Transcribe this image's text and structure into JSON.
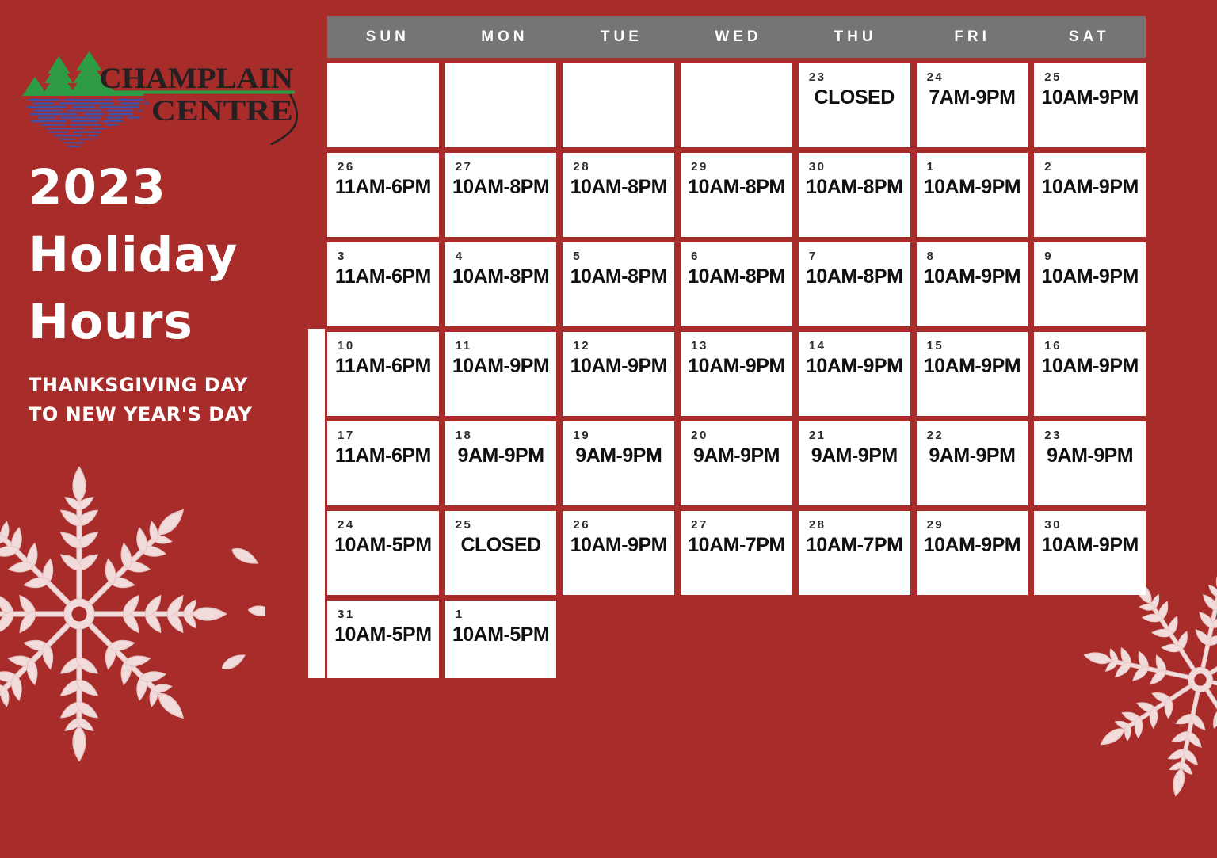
{
  "page_title": "2023 Holiday Hours",
  "brand": {
    "name_line1": "CHAMPLAIN",
    "name_line2": "CENTRE"
  },
  "title": {
    "line1": "2023",
    "line2": "Holiday",
    "line3": "Hours"
  },
  "subtitle": {
    "line1": "THANKSGIVING DAY",
    "line2": "TO NEW YEAR'S DAY"
  },
  "calendar": {
    "day_headers": [
      "SUN",
      "MON",
      "TUE",
      "WED",
      "THU",
      "FRI",
      "SAT"
    ],
    "weeks": [
      [
        {
          "date": "",
          "hours": ""
        },
        {
          "date": "",
          "hours": ""
        },
        {
          "date": "",
          "hours": ""
        },
        {
          "date": "",
          "hours": ""
        },
        {
          "date": "23",
          "hours": "CLOSED"
        },
        {
          "date": "24",
          "hours": "7AM-9PM"
        },
        {
          "date": "25",
          "hours": "10AM-9PM"
        }
      ],
      [
        {
          "date": "26",
          "hours": "11AM-6PM"
        },
        {
          "date": "27",
          "hours": "10AM-8PM"
        },
        {
          "date": "28",
          "hours": "10AM-8PM"
        },
        {
          "date": "29",
          "hours": "10AM-8PM"
        },
        {
          "date": "30",
          "hours": "10AM-8PM"
        },
        {
          "date": "1",
          "hours": "10AM-9PM"
        },
        {
          "date": "2",
          "hours": "10AM-9PM"
        }
      ],
      [
        {
          "date": "3",
          "hours": "11AM-6PM"
        },
        {
          "date": "4",
          "hours": "10AM-8PM"
        },
        {
          "date": "5",
          "hours": "10AM-8PM"
        },
        {
          "date": "6",
          "hours": "10AM-8PM"
        },
        {
          "date": "7",
          "hours": "10AM-8PM"
        },
        {
          "date": "8",
          "hours": "10AM-9PM"
        },
        {
          "date": "9",
          "hours": "10AM-9PM"
        }
      ],
      [
        {
          "date": "10",
          "hours": "11AM-6PM"
        },
        {
          "date": "11",
          "hours": "10AM-9PM"
        },
        {
          "date": "12",
          "hours": "10AM-9PM"
        },
        {
          "date": "13",
          "hours": "10AM-9PM"
        },
        {
          "date": "14",
          "hours": "10AM-9PM"
        },
        {
          "date": "15",
          "hours": "10AM-9PM"
        },
        {
          "date": "16",
          "hours": "10AM-9PM"
        }
      ],
      [
        {
          "date": "17",
          "hours": "11AM-6PM"
        },
        {
          "date": "18",
          "hours": "9AM-9PM"
        },
        {
          "date": "19",
          "hours": "9AM-9PM"
        },
        {
          "date": "20",
          "hours": "9AM-9PM"
        },
        {
          "date": "21",
          "hours": "9AM-9PM"
        },
        {
          "date": "22",
          "hours": "9AM-9PM"
        },
        {
          "date": "23",
          "hours": "9AM-9PM"
        }
      ],
      [
        {
          "date": "24",
          "hours": "10AM-5PM"
        },
        {
          "date": "25",
          "hours": "CLOSED"
        },
        {
          "date": "26",
          "hours": "10AM-9PM"
        },
        {
          "date": "27",
          "hours": "10AM-7PM"
        },
        {
          "date": "28",
          "hours": "10AM-7PM"
        },
        {
          "date": "29",
          "hours": "10AM-9PM"
        },
        {
          "date": "30",
          "hours": "10AM-9PM"
        }
      ],
      [
        {
          "date": "31",
          "hours": "10AM-5PM"
        },
        {
          "date": "1",
          "hours": "10AM-5PM"
        },
        null,
        null,
        null,
        null,
        null
      ]
    ]
  },
  "colors": {
    "background_red": "#a72c2a",
    "header_gray": "#757577",
    "cell_white": "#ffffff",
    "text_black": "#101010",
    "logo_green": "#2e9c44",
    "logo_blue": "#3d52a8",
    "logo_text": "#262022",
    "snowflake_pink": "#f2dcdb"
  }
}
